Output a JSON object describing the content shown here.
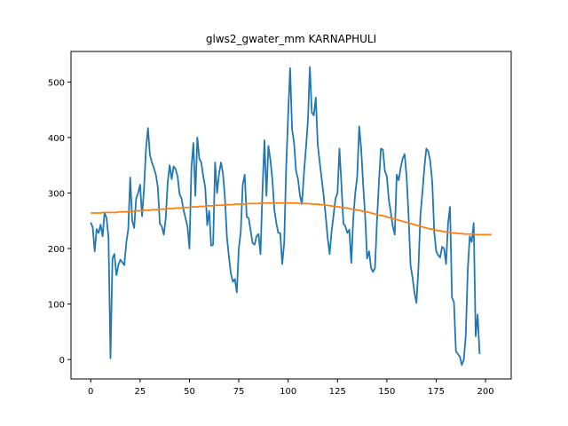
{
  "chart_data": {
    "type": "line",
    "title": "glws2_gwater_mm KARNAPHULI",
    "xlabel": "",
    "ylabel": "",
    "xlim": [
      -10,
      213
    ],
    "ylim": [
      -35,
      555
    ],
    "xticks": [
      0,
      25,
      50,
      75,
      100,
      125,
      150,
      175,
      200
    ],
    "yticks": [
      0,
      100,
      200,
      300,
      400,
      500
    ],
    "grid": false,
    "series": [
      {
        "color": "#1f77b4",
        "values": [
          247,
          238,
          195,
          235,
          228,
          243,
          222,
          265,
          255,
          220,
          2,
          182,
          190,
          152,
          170,
          180,
          175,
          170,
          210,
          235,
          328,
          250,
          237,
          290,
          300,
          315,
          258,
          308,
          380,
          417,
          368,
          355,
          345,
          333,
          310,
          245,
          240,
          225,
          255,
          320,
          350,
          325,
          348,
          343,
          330,
          298,
          290,
          270,
          255,
          240,
          200,
          345,
          390,
          295,
          400,
          362,
          355,
          330,
          310,
          242,
          268,
          205,
          207,
          355,
          300,
          335,
          355,
          335,
          290,
          220,
          185,
          155,
          140,
          145,
          121,
          200,
          230,
          315,
          333,
          257,
          255,
          232,
          210,
          207,
          222,
          226,
          190,
          305,
          395,
          295,
          385,
          360,
          325,
          270,
          246,
          228,
          228,
          172,
          210,
          345,
          440,
          525,
          415,
          390,
          340,
          325,
          295,
          280,
          335,
          380,
          430,
          527,
          445,
          440,
          472,
          387,
          355,
          325,
          295,
          260,
          220,
          190,
          230,
          260,
          290,
          300,
          380,
          315,
          245,
          240,
          228,
          234,
          174,
          255,
          300,
          330,
          420,
          380,
          315,
          260,
          182,
          195,
          165,
          158,
          165,
          250,
          320,
          380,
          378,
          340,
          330,
          288,
          265,
          240,
          225,
          333,
          323,
          345,
          362,
          370,
          330,
          260,
          170,
          148,
          120,
          102,
          165,
          260,
          300,
          345,
          380,
          375,
          357,
          320,
          230,
          195,
          188,
          184,
          203,
          200,
          172,
          245,
          275,
          112,
          103,
          15,
          10,
          5,
          -10,
          0,
          45,
          162,
          222,
          212,
          246,
          42,
          81,
          10
        ]
      },
      {
        "color": "#ff7f0e",
        "values": [
          264,
          264,
          264,
          264,
          264,
          264,
          265,
          265,
          265,
          265,
          265,
          265,
          265,
          265,
          266,
          266,
          266,
          266,
          266,
          267,
          267,
          267,
          267,
          268,
          268,
          268,
          268,
          269,
          269,
          269,
          269,
          270,
          270,
          270,
          270,
          271,
          271,
          271,
          271,
          272,
          272,
          272,
          272,
          273,
          273,
          273,
          273,
          274,
          274,
          274,
          274,
          275,
          275,
          275,
          275,
          276,
          276,
          276,
          276,
          277,
          277,
          277,
          277,
          278,
          278,
          278,
          278,
          278,
          279,
          279,
          279,
          279,
          279,
          280,
          280,
          280,
          280,
          280,
          280,
          281,
          281,
          281,
          281,
          281,
          281,
          281,
          282,
          282,
          282,
          282,
          282,
          282,
          282,
          282,
          282,
          282,
          282,
          282,
          282,
          282,
          282,
          282,
          282,
          282,
          282,
          282,
          281,
          281,
          281,
          281,
          281,
          281,
          280,
          280,
          280,
          280,
          279,
          279,
          279,
          278,
          278,
          277,
          277,
          276,
          276,
          275,
          275,
          274,
          274,
          273,
          273,
          272,
          271,
          271,
          270,
          269,
          269,
          268,
          267,
          266,
          266,
          265,
          264,
          263,
          262,
          261,
          260,
          260,
          259,
          258,
          257,
          256,
          255,
          254,
          253,
          252,
          251,
          250,
          249,
          248,
          247,
          246,
          245,
          244,
          243,
          242,
          241,
          240,
          239,
          238,
          237,
          236,
          235,
          235,
          234,
          233,
          232,
          232,
          231,
          230,
          230,
          229,
          229,
          228,
          228,
          228,
          227,
          227,
          227,
          226,
          226,
          226,
          226,
          226,
          226,
          225,
          225,
          225,
          225,
          225,
          225,
          225,
          225,
          225
        ]
      }
    ]
  }
}
